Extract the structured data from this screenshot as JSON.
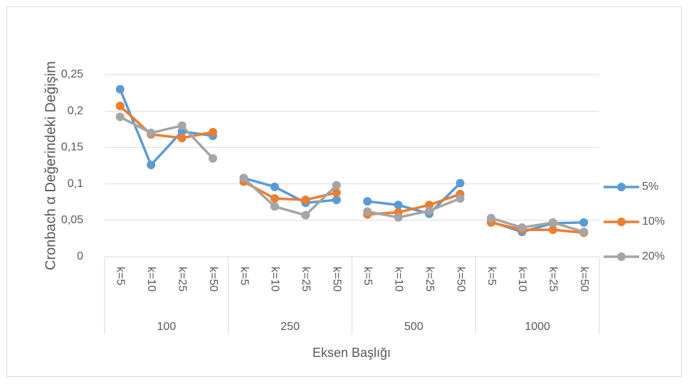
{
  "chart_data": {
    "type": "line",
    "y_label": "Cronbach α Değerindeki Değişim",
    "x_label": "Eksen Başlığı",
    "categories": [
      "k=5",
      "k=10",
      "k=25",
      "k=50",
      "k=5",
      "k=10",
      "k=25",
      "k=50",
      "k=5",
      "k=10",
      "k=25",
      "k=50",
      "k=5",
      "k=10",
      "k=25",
      "k=50"
    ],
    "groups": [
      "100",
      "250",
      "500",
      "1000"
    ],
    "series": [
      {
        "name": "5%",
        "color": "#5b9bd5",
        "values": [
          0.23,
          0.126,
          0.172,
          0.166,
          0.108,
          0.096,
          0.074,
          0.078,
          0.076,
          0.071,
          0.059,
          0.101,
          0.048,
          0.034,
          0.046,
          0.047
        ]
      },
      {
        "name": "10%",
        "color": "#ed7d31",
        "values": [
          0.207,
          0.168,
          0.163,
          0.171,
          0.103,
          0.08,
          0.078,
          0.088,
          0.058,
          0.061,
          0.071,
          0.086,
          0.047,
          0.037,
          0.037,
          0.033
        ]
      },
      {
        "name": "20%",
        "color": "#a5a5a5",
        "values": [
          0.192,
          0.17,
          0.18,
          0.135,
          0.108,
          0.069,
          0.057,
          0.098,
          0.062,
          0.054,
          0.063,
          0.08,
          0.053,
          0.04,
          0.047,
          0.034
        ]
      }
    ],
    "ylim": [
      0,
      0.25
    ],
    "yticks": [
      0,
      {
        "value": 0.05,
        "label": "0,05"
      },
      {
        "value": 0.1,
        "label": "0,1"
      },
      {
        "value": 0.15,
        "label": "0,15"
      },
      {
        "value": 0.2,
        "label": "0,2"
      },
      {
        "value": 0.25,
        "label": "0,25"
      }
    ],
    "grid": true,
    "legend": "right"
  }
}
